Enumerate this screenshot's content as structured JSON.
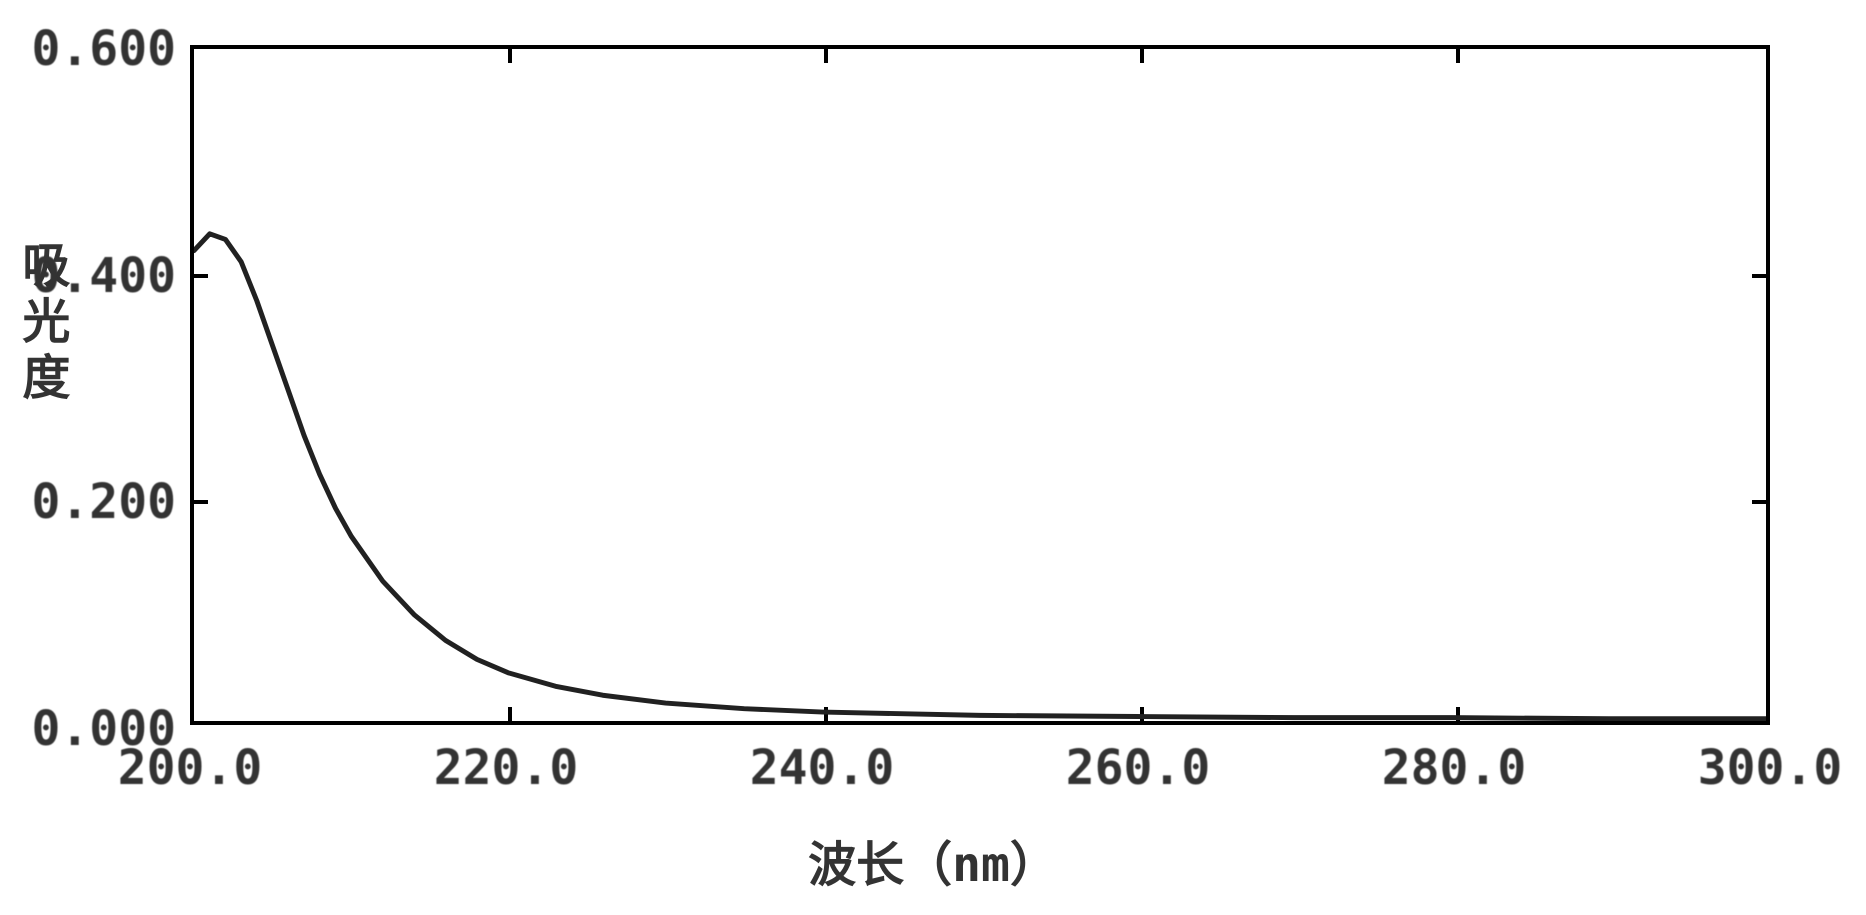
{
  "chart": {
    "type": "line",
    "ylabel": "吸光度",
    "xlabel": "波长（nm）",
    "xlim": [
      200.0,
      300.0
    ],
    "ylim": [
      0.0,
      0.6
    ],
    "xtick_labels": [
      "200.0",
      "220.0",
      "240.0",
      "260.0",
      "280.0",
      "300.0"
    ],
    "xtick_values": [
      200.0,
      220.0,
      240.0,
      260.0,
      280.0,
      300.0
    ],
    "ytick_labels": [
      "0.000",
      "0.200",
      "0.400",
      "0.600"
    ],
    "ytick_values": [
      0.0,
      0.2,
      0.4,
      0.6
    ],
    "background_color": "#ffffff",
    "axis_color": "#000000",
    "line_color": "#2a2a2a",
    "text_color": "#3a3a3a",
    "line_width": 5,
    "label_fontsize": 48,
    "tick_fontsize": 48,
    "data_points": [
      {
        "x": 200.0,
        "y": 0.42
      },
      {
        "x": 201.0,
        "y": 0.435
      },
      {
        "x": 202.0,
        "y": 0.43
      },
      {
        "x": 203.0,
        "y": 0.41
      },
      {
        "x": 204.0,
        "y": 0.375
      },
      {
        "x": 205.0,
        "y": 0.335
      },
      {
        "x": 206.0,
        "y": 0.295
      },
      {
        "x": 207.0,
        "y": 0.255
      },
      {
        "x": 208.0,
        "y": 0.22
      },
      {
        "x": 209.0,
        "y": 0.19
      },
      {
        "x": 210.0,
        "y": 0.165
      },
      {
        "x": 212.0,
        "y": 0.125
      },
      {
        "x": 214.0,
        "y": 0.095
      },
      {
        "x": 216.0,
        "y": 0.072
      },
      {
        "x": 218.0,
        "y": 0.055
      },
      {
        "x": 220.0,
        "y": 0.043
      },
      {
        "x": 223.0,
        "y": 0.031
      },
      {
        "x": 226.0,
        "y": 0.023
      },
      {
        "x": 230.0,
        "y": 0.016
      },
      {
        "x": 235.0,
        "y": 0.011
      },
      {
        "x": 240.0,
        "y": 0.008
      },
      {
        "x": 250.0,
        "y": 0.005
      },
      {
        "x": 260.0,
        "y": 0.004
      },
      {
        "x": 270.0,
        "y": 0.003
      },
      {
        "x": 280.0,
        "y": 0.003
      },
      {
        "x": 290.0,
        "y": 0.002
      },
      {
        "x": 300.0,
        "y": 0.002
      }
    ]
  }
}
